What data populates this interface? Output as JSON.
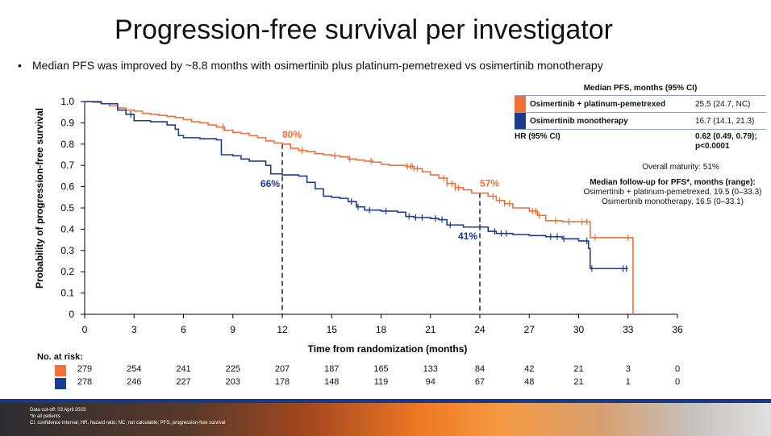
{
  "page": {
    "title": "Progression-free survival per investigator",
    "bullet_marker": "•",
    "bullet": "Median PFS was improved by ~8.8 months with osimertinib plus platinum-pemetrexed vs osimertinib monotherapy"
  },
  "chart_data": {
    "type": "line",
    "subtype": "kaplan-meier",
    "title": "",
    "xlabel": "Time from randomization (months)",
    "ylabel": "Probability of progression-free survival",
    "xlim": [
      0,
      36
    ],
    "ylim": [
      0,
      1.0
    ],
    "xticks": [
      0,
      3,
      6,
      9,
      12,
      15,
      18,
      21,
      24,
      27,
      30,
      33,
      36
    ],
    "yticks": [
      0,
      0.1,
      0.2,
      0.3,
      0.4,
      0.5,
      0.6,
      0.7,
      0.8,
      0.9,
      1.0
    ],
    "ytick_labels": [
      "0",
      "0.1",
      "0.2",
      "0.3",
      "0.4",
      "0.5",
      "0.6",
      "0.7",
      "0.8",
      "0.9",
      "1.0"
    ],
    "grid": false,
    "series": [
      {
        "name": "Osimertinib + platinum-pemetrexed",
        "color": "#f26f35",
        "steps": [
          [
            0,
            1.0
          ],
          [
            0.5,
            0.996
          ],
          [
            1,
            0.99
          ],
          [
            1.5,
            0.98
          ],
          [
            2,
            0.97
          ],
          [
            2.5,
            0.96
          ],
          [
            3,
            0.955
          ],
          [
            3.5,
            0.945
          ],
          [
            4,
            0.94
          ],
          [
            4.5,
            0.935
          ],
          [
            5,
            0.93
          ],
          [
            5.5,
            0.925
          ],
          [
            6,
            0.915
          ],
          [
            6.5,
            0.905
          ],
          [
            7,
            0.9
          ],
          [
            7.5,
            0.89
          ],
          [
            8,
            0.88
          ],
          [
            8.5,
            0.865
          ],
          [
            9,
            0.855
          ],
          [
            9.5,
            0.85
          ],
          [
            10,
            0.84
          ],
          [
            10.5,
            0.83
          ],
          [
            11,
            0.815
          ],
          [
            11.5,
            0.805
          ],
          [
            12,
            0.8
          ],
          [
            12.5,
            0.78
          ],
          [
            13,
            0.77
          ],
          [
            13.5,
            0.765
          ],
          [
            14,
            0.755
          ],
          [
            14.5,
            0.75
          ],
          [
            15,
            0.745
          ],
          [
            15.5,
            0.74
          ],
          [
            16,
            0.73
          ],
          [
            16.5,
            0.725
          ],
          [
            17,
            0.72
          ],
          [
            17.5,
            0.715
          ],
          [
            18,
            0.705
          ],
          [
            18.5,
            0.7
          ],
          [
            19,
            0.7
          ],
          [
            19.5,
            0.695
          ],
          [
            20,
            0.685
          ],
          [
            20.5,
            0.67
          ],
          [
            21,
            0.655
          ],
          [
            21.5,
            0.64
          ],
          [
            22,
            0.615
          ],
          [
            22.5,
            0.595
          ],
          [
            23,
            0.585
          ],
          [
            23.5,
            0.57
          ],
          [
            24,
            0.57
          ],
          [
            24.5,
            0.555
          ],
          [
            25,
            0.535
          ],
          [
            25.5,
            0.52
          ],
          [
            26,
            0.5
          ],
          [
            27,
            0.485
          ],
          [
            27.5,
            0.465
          ],
          [
            28,
            0.44
          ],
          [
            29,
            0.435
          ],
          [
            30,
            0.435
          ],
          [
            30.7,
            0.36
          ],
          [
            31,
            0.36
          ],
          [
            33.3,
            0.36
          ],
          [
            33.3,
            0.0
          ]
        ],
        "censor_x": [
          8.4,
          13.2,
          15.2,
          16.1,
          17.4,
          19.6,
          19.8,
          19.9,
          20.0,
          20.2,
          21.8,
          22.0,
          22.3,
          22.5,
          22.7,
          24.8,
          25.2,
          25.5,
          25.8,
          27.2,
          27.4,
          27.6,
          28.6,
          29.4,
          30.2,
          30.5,
          31.0,
          33.0
        ]
      },
      {
        "name": "Osimertinib monotherapy",
        "color": "#1a3c8f",
        "steps": [
          [
            0,
            1.0
          ],
          [
            1,
            0.99
          ],
          [
            2,
            0.96
          ],
          [
            2.5,
            0.94
          ],
          [
            3,
            0.91
          ],
          [
            4,
            0.905
          ],
          [
            5,
            0.89
          ],
          [
            5.5,
            0.87
          ],
          [
            5.7,
            0.84
          ],
          [
            6,
            0.83
          ],
          [
            7,
            0.825
          ],
          [
            8,
            0.82
          ],
          [
            8.3,
            0.75
          ],
          [
            9,
            0.745
          ],
          [
            9.5,
            0.73
          ],
          [
            10,
            0.72
          ],
          [
            11,
            0.7
          ],
          [
            11.3,
            0.66
          ],
          [
            12,
            0.655
          ],
          [
            13,
            0.65
          ],
          [
            13.5,
            0.62
          ],
          [
            14,
            0.59
          ],
          [
            14.5,
            0.555
          ],
          [
            15,
            0.55
          ],
          [
            15.5,
            0.545
          ],
          [
            16,
            0.53
          ],
          [
            16.5,
            0.505
          ],
          [
            17,
            0.49
          ],
          [
            18,
            0.485
          ],
          [
            19,
            0.48
          ],
          [
            19.5,
            0.46
          ],
          [
            20,
            0.455
          ],
          [
            21,
            0.45
          ],
          [
            21.5,
            0.445
          ],
          [
            22,
            0.42
          ],
          [
            23,
            0.41
          ],
          [
            24,
            0.41
          ],
          [
            24.5,
            0.39
          ],
          [
            25,
            0.38
          ],
          [
            26,
            0.375
          ],
          [
            27,
            0.37
          ],
          [
            28,
            0.365
          ],
          [
            29,
            0.355
          ],
          [
            30,
            0.345
          ],
          [
            30.5,
            0.345
          ],
          [
            30.6,
            0.31
          ],
          [
            30.7,
            0.215
          ],
          [
            33.0,
            0.215
          ]
        ],
        "censor_x": [
          2.8,
          16.2,
          16.6,
          17.3,
          18.3,
          19.7,
          20.1,
          20.5,
          21.3,
          21.7,
          22.2,
          24.0,
          24.9,
          25.3,
          25.6,
          28.3,
          28.7,
          29.1,
          30.5,
          30.8,
          32.7,
          32.9
        ]
      }
    ],
    "reference_lines": [
      {
        "x": 12,
        "y": 0.8,
        "label": "80%",
        "label_series": 0
      },
      {
        "x": 12,
        "y": 0.655,
        "label": "66%",
        "label_series": 1
      },
      {
        "x": 24,
        "y": 0.57,
        "label": "57%",
        "label_series": 0
      },
      {
        "x": 24,
        "y": 0.41,
        "label": "41%",
        "label_series": 1
      }
    ],
    "risk_table": {
      "title": "No. at risk:",
      "times": [
        0,
        3,
        6,
        9,
        12,
        15,
        18,
        21,
        24,
        27,
        30,
        33,
        36
      ],
      "rows": [
        {
          "series": 0,
          "values": [
            "279",
            "254",
            "241",
            "225",
            "207",
            "187",
            "165",
            "133",
            "84",
            "42",
            "21",
            "3",
            "0"
          ]
        },
        {
          "series": 1,
          "values": [
            "278",
            "246",
            "227",
            "203",
            "178",
            "148",
            "119",
            "94",
            "67",
            "48",
            "21",
            "1",
            "0"
          ]
        }
      ]
    }
  },
  "legend": {
    "header": "Median PFS, months (95% CI)",
    "rows": [
      {
        "name": "Osimertinib + platinum-pemetrexed",
        "value": "25.5 (24.7, NC)",
        "color": "#f26f35"
      },
      {
        "name": "Osimertinib monotherapy",
        "value": "16.7 (14.1, 21.3)",
        "color": "#1a3c8f"
      }
    ],
    "hr_label": "HR (95% CI)",
    "hr_value_line1": "0.62 (0.49, 0.79);",
    "hr_value_line2": "p<0.0001",
    "maturity": "Overall maturity: 51%",
    "followup_header": "Median follow-up for PFS*, months (range):",
    "followup_line1": "Osimertinib + platinum-pemetrexed, 19.5 (0–33.3)",
    "followup_line2": "Osimertinib monotherapy, 16.5 (0–33.1)"
  },
  "footer": {
    "line1": "Data cut-off: 03 April 2023",
    "line2": "*In all patients",
    "line3": "CI, confidence interval; HR, hazard ratio; NC, not calculable; PFS, progression-free survival"
  }
}
